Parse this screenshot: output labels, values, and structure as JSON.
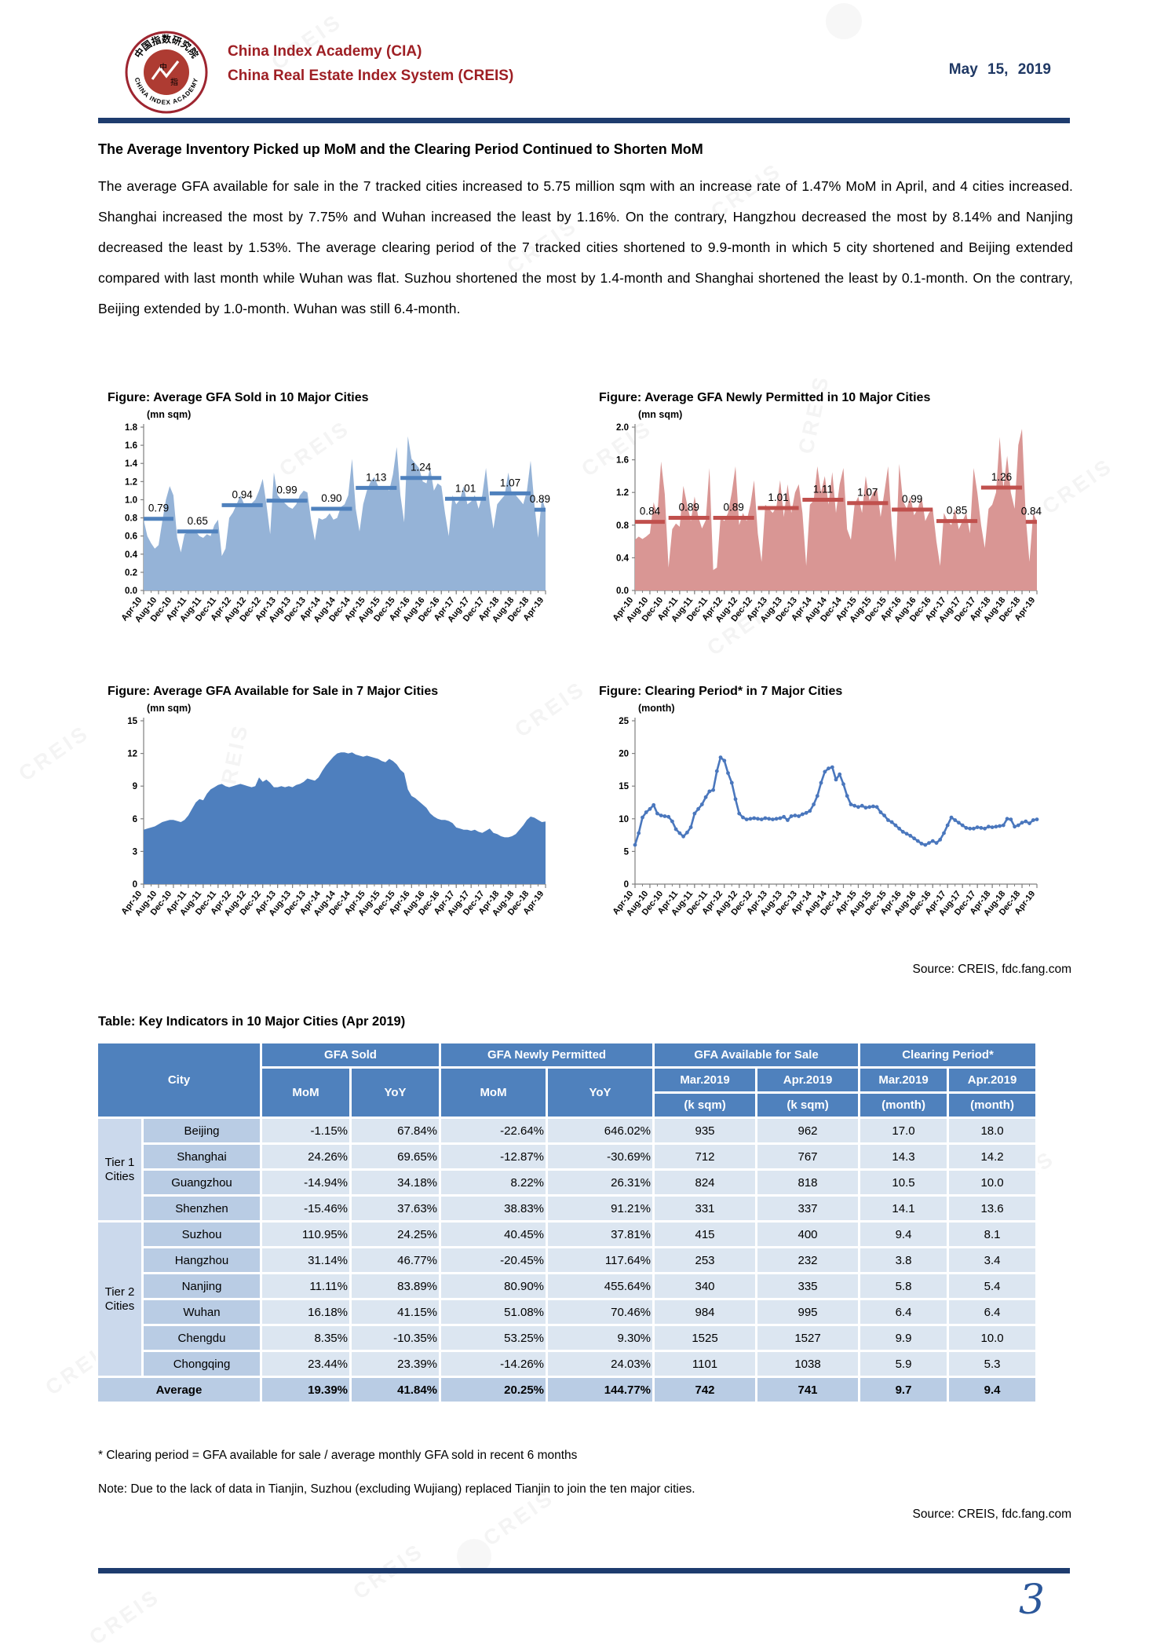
{
  "colors": {
    "brand_red": "#9E1F24",
    "navy": "#1E3C6E",
    "table_header": "#4F81BD",
    "blue_fill": "#95B3D7",
    "blue_avg": "#4F81BD",
    "red_fill": "#D99694",
    "red_avg": "#C0504D",
    "inventory_fill": "#4E7FBE",
    "line_blue": "#4A77BD"
  },
  "header": {
    "org_line1": "China Index Academy (CIA)",
    "org_line2": "China Real Estate Index System (CREIS)",
    "date": "May 15, 2019",
    "logo": {
      "ring_top": "中国指数研究院",
      "ring_bottom": "CHINA INDEX ACADEMY",
      "center_chars": "中指"
    }
  },
  "heading": "The Average Inventory Picked up MoM and the Clearing Period Continued to Shorten MoM",
  "paragraph": "The average GFA available for sale in the 7 tracked cities increased to 5.75 million sqm with an increase rate of 1.47% MoM in April, and 4 cities increased. Shanghai increased the most by 7.75% and Wuhan increased the least by 1.16%. On the contrary, Hangzhou decreased the most by 8.14% and Nanjing decreased the least by 1.53%. The average clearing period of the 7 tracked cities shortened to 9.9-month in which 5 city shortened and Beijing extended compared with last month while Wuhan was flat. Suzhou shortened the most by 1.4-month and Shanghai shortened the least by 0.1-month. On the contrary, Beijing extended by 1.0-month. Wuhan was still 6.4-month.",
  "charts_source": "Source: CREIS, fdc.fang.com",
  "watermark": "CREIS",
  "chart_data": [
    {
      "type": "area",
      "title": "Figure: Average GFA Sold in 10 Major Cities",
      "unit": "(mn sqm)",
      "ylabel": "mn sqm",
      "ymax": 1.8,
      "yticks": [
        "0.0",
        "0.2",
        "0.4",
        "0.6",
        "0.8",
        "1.0",
        "1.2",
        "1.4",
        "1.6",
        "1.8"
      ],
      "x_tick_labels": [
        "Apr-10",
        "Aug-10",
        "Dec-10",
        "Apr-11",
        "Aug-11",
        "Dec-11",
        "Apr-12",
        "Aug-12",
        "Dec-12",
        "Apr-13",
        "Aug-13",
        "Dec-13",
        "Apr-14",
        "Aug-14",
        "Dec-14",
        "Apr-15",
        "Aug-15",
        "Dec-15",
        "Apr-16",
        "Aug-16",
        "Dec-16",
        "Apr-17",
        "Aug-17",
        "Dec-17",
        "Apr-18",
        "Aug-18",
        "Dec-18",
        "Apr-19"
      ],
      "fill": "#95B3D7",
      "avg_color": "#4F81BD",
      "values": [
        0.78,
        0.6,
        0.52,
        0.46,
        0.5,
        0.76,
        1.0,
        1.15,
        1.05,
        0.58,
        0.42,
        0.62,
        0.64,
        0.66,
        0.65,
        0.6,
        0.58,
        0.62,
        0.6,
        0.72,
        0.78,
        0.38,
        0.46,
        0.8,
        0.86,
        0.95,
        1.05,
        0.95,
        0.92,
        0.96,
        1.0,
        1.1,
        1.23,
        0.95,
        0.62,
        1.3,
        1.05,
        1.0,
        0.96,
        0.92,
        0.9,
        0.95,
        1.05,
        1.1,
        1.08,
        0.78,
        0.55,
        0.8,
        0.78,
        0.8,
        0.85,
        0.78,
        0.8,
        0.92,
        0.95,
        1.05,
        1.45,
        0.9,
        0.65,
        0.95,
        1.1,
        1.2,
        1.25,
        1.15,
        1.12,
        1.15,
        1.1,
        1.28,
        1.58,
        1.05,
        0.75,
        1.7,
        1.45,
        1.4,
        1.35,
        1.2,
        1.18,
        1.35,
        1.1,
        1.18,
        1.15,
        0.85,
        0.6,
        1.05,
        0.95,
        1.0,
        1.15,
        0.95,
        0.98,
        1.05,
        0.9,
        1.05,
        1.35,
        0.95,
        0.68,
        0.95,
        1.0,
        1.05,
        1.3,
        1.05,
        1.05,
        1.0,
        0.95,
        1.1,
        1.43,
        0.95,
        0.58,
        1.02,
        0.89
      ],
      "avg_segments": [
        {
          "label": "0.79",
          "value": 0.79,
          "start": 0,
          "end": 8
        },
        {
          "label": "0.65",
          "value": 0.65,
          "start": 9,
          "end": 20
        },
        {
          "label": "0.94",
          "value": 0.94,
          "start": 21,
          "end": 32
        },
        {
          "label": "0.99",
          "value": 0.99,
          "start": 33,
          "end": 44
        },
        {
          "label": "0.90",
          "value": 0.9,
          "start": 45,
          "end": 56
        },
        {
          "label": "1.13",
          "value": 1.13,
          "start": 57,
          "end": 68
        },
        {
          "label": "1.24",
          "value": 1.24,
          "start": 69,
          "end": 80
        },
        {
          "label": "1.01",
          "value": 1.01,
          "start": 81,
          "end": 92
        },
        {
          "label": "1.07",
          "value": 1.07,
          "start": 93,
          "end": 104
        },
        {
          "label": "0.89",
          "value": 0.89,
          "start": 105,
          "end": 108
        }
      ]
    },
    {
      "type": "area",
      "title": "Figure: Average GFA Newly Permitted in 10 Major Cities",
      "unit": "(mn sqm)",
      "ylabel": "mn sqm",
      "ymax": 2.0,
      "yticks": [
        "0.0",
        "0.4",
        "0.8",
        "1.2",
        "1.6",
        "2.0"
      ],
      "x_tick_labels": [
        "Apr-10",
        "Aug-10",
        "Dec-10",
        "Apr-11",
        "Aug-11",
        "Dec-11",
        "Apr-12",
        "Aug-12",
        "Dec-12",
        "Apr-13",
        "Aug-13",
        "Dec-13",
        "Apr-14",
        "Aug-14",
        "Dec-14",
        "Apr-15",
        "Aug-15",
        "Dec-15",
        "Apr-16",
        "Aug-16",
        "Dec-16",
        "Apr-17",
        "Aug-17",
        "Dec-17",
        "Apr-18",
        "Aug-18",
        "Dec-18",
        "Apr-19"
      ],
      "fill": "#D99694",
      "avg_color": "#C0504D",
      "values": [
        0.62,
        0.66,
        0.63,
        0.66,
        0.7,
        1.08,
        0.92,
        1.58,
        1.18,
        0.28,
        0.75,
        0.82,
        0.78,
        1.28,
        1.05,
        0.85,
        1.15,
        0.9,
        0.76,
        0.86,
        1.5,
        0.25,
        0.28,
        0.9,
        0.85,
        0.95,
        1.2,
        1.52,
        0.8,
        0.95,
        0.85,
        1.05,
        1.35,
        0.7,
        0.35,
        1.05,
        1.0,
        0.95,
        1.02,
        1.35,
        0.9,
        1.3,
        0.95,
        1.2,
        1.3,
        0.95,
        0.3,
        1.05,
        1.1,
        1.52,
        1.2,
        1.4,
        1.05,
        1.45,
        0.95,
        1.3,
        1.5,
        0.75,
        0.62,
        1.05,
        1.15,
        0.95,
        1.4,
        1.1,
        1.2,
        1.25,
        0.9,
        1.2,
        1.52,
        0.8,
        0.35,
        1.55,
        1.1,
        1.0,
        1.15,
        0.92,
        1.0,
        1.15,
        0.85,
        0.95,
        1.0,
        0.6,
        0.3,
        0.95,
        0.85,
        0.8,
        1.0,
        0.75,
        0.85,
        0.95,
        0.7,
        1.5,
        1.2,
        0.8,
        0.52,
        1.0,
        1.05,
        1.2,
        1.88,
        1.25,
        1.65,
        1.2,
        1.0,
        1.78,
        1.98,
        0.9,
        0.35,
        0.95,
        0.84
      ],
      "avg_segments": [
        {
          "label": "0.84",
          "value": 0.84,
          "start": 0,
          "end": 8
        },
        {
          "label": "0.89",
          "value": 0.89,
          "start": 9,
          "end": 20
        },
        {
          "label": "0.89",
          "value": 0.89,
          "start": 21,
          "end": 32
        },
        {
          "label": "1.01",
          "value": 1.01,
          "start": 33,
          "end": 44
        },
        {
          "label": "1.11",
          "value": 1.11,
          "start": 45,
          "end": 56
        },
        {
          "label": "1.07",
          "value": 1.07,
          "start": 57,
          "end": 68
        },
        {
          "label": "0.99",
          "value": 0.99,
          "start": 69,
          "end": 80
        },
        {
          "label": "0.85",
          "value": 0.85,
          "start": 81,
          "end": 92
        },
        {
          "label": "1.26",
          "value": 1.26,
          "start": 93,
          "end": 104
        },
        {
          "label": "0.84",
          "value": 0.84,
          "start": 105,
          "end": 108
        }
      ]
    },
    {
      "type": "area",
      "title": "Figure: Average GFA Available for Sale in 7 Major Cities",
      "unit": "(mn sqm)",
      "ylabel": "mn sqm",
      "ymax": 15,
      "yticks": [
        "0",
        "3",
        "6",
        "9",
        "12",
        "15"
      ],
      "x_tick_labels": [
        "Apr-10",
        "Aug-10",
        "Dec-10",
        "Apr-11",
        "Aug-11",
        "Dec-11",
        "Apr-12",
        "Aug-12",
        "Dec-12",
        "Apr-13",
        "Aug-13",
        "Dec-13",
        "Apr-14",
        "Aug-14",
        "Dec-14",
        "Apr-15",
        "Aug-15",
        "Dec-15",
        "Apr-16",
        "Aug-16",
        "Dec-16",
        "Apr-17",
        "Aug-17",
        "Dec-17",
        "Apr-18",
        "Aug-18",
        "Dec-18",
        "Apr-19"
      ],
      "fill": "#4E7FBE",
      "avg_color": "#4E7FBE",
      "values": [
        5.0,
        5.1,
        5.2,
        5.3,
        5.5,
        5.7,
        5.8,
        5.9,
        5.9,
        5.8,
        5.7,
        5.9,
        6.3,
        6.9,
        7.5,
        7.8,
        7.7,
        8.3,
        8.7,
        8.9,
        9.1,
        9.2,
        9.0,
        8.9,
        9.0,
        9.1,
        9.2,
        9.1,
        9.0,
        8.9,
        9.0,
        9.8,
        9.4,
        9.6,
        9.3,
        8.9,
        8.9,
        9.0,
        8.9,
        9.0,
        8.9,
        9.1,
        9.2,
        9.4,
        9.7,
        9.6,
        9.5,
        9.8,
        10.4,
        10.9,
        11.3,
        11.7,
        12.0,
        12.1,
        12.1,
        12.0,
        12.1,
        11.9,
        11.8,
        11.7,
        11.8,
        11.7,
        11.6,
        11.5,
        11.3,
        11.2,
        11.5,
        11.3,
        11.0,
        10.5,
        10.2,
        8.7,
        8.1,
        7.9,
        7.6,
        7.3,
        7.0,
        6.5,
        6.2,
        6.0,
        5.9,
        5.9,
        5.8,
        5.6,
        5.2,
        5.1,
        5.0,
        5.0,
        4.9,
        5.0,
        4.8,
        4.7,
        4.9,
        5.1,
        4.7,
        4.6,
        4.4,
        4.3,
        4.3,
        4.4,
        4.6,
        5.0,
        5.4,
        5.9,
        6.2,
        6.1,
        5.9,
        5.7,
        5.75
      ],
      "avg_segments": []
    },
    {
      "type": "line",
      "title": "Figure: Clearing Period* in 7 Major Cities",
      "unit": "(month)",
      "ylabel": "month",
      "ymax": 25,
      "yticks": [
        "0",
        "5",
        "10",
        "15",
        "20",
        "25"
      ],
      "x_tick_labels": [
        "Apr-10",
        "Aug-10",
        "Dec-10",
        "Apr-11",
        "Aug-11",
        "Dec-11",
        "Apr-12",
        "Aug-12",
        "Dec-12",
        "Apr-13",
        "Aug-13",
        "Dec-13",
        "Apr-14",
        "Aug-14",
        "Dec-14",
        "Apr-15",
        "Aug-15",
        "Dec-15",
        "Apr-16",
        "Aug-16",
        "Dec-16",
        "Apr-17",
        "Aug-17",
        "Dec-17",
        "Apr-18",
        "Aug-18",
        "Dec-18",
        "Apr-19"
      ],
      "line_color": "#4A77BD",
      "values": [
        6.0,
        7.8,
        10.2,
        11.0,
        11.5,
        12.1,
        10.8,
        10.5,
        10.4,
        10.3,
        9.6,
        8.4,
        7.8,
        7.3,
        7.9,
        8.7,
        10.8,
        11.5,
        12.2,
        13.3,
        14.2,
        14.4,
        17.3,
        19.4,
        18.9,
        17.0,
        15.5,
        13.0,
        10.8,
        10.2,
        9.9,
        10.0,
        10.1,
        10.0,
        9.9,
        10.1,
        10.0,
        9.9,
        10.0,
        10.1,
        10.3,
        9.8,
        10.4,
        10.5,
        10.4,
        10.7,
        10.9,
        11.2,
        12.2,
        13.5,
        15.5,
        17.2,
        17.7,
        17.9,
        16.0,
        16.8,
        15.3,
        13.5,
        12.2,
        12.0,
        11.8,
        12.0,
        11.7,
        11.8,
        11.9,
        11.8,
        11.0,
        10.5,
        9.8,
        9.5,
        9.0,
        8.5,
        8.0,
        7.7,
        7.4,
        7.0,
        6.6,
        6.2,
        6.0,
        6.3,
        6.6,
        6.3,
        6.8,
        7.8,
        9.0,
        10.2,
        9.8,
        9.4,
        9.0,
        8.6,
        8.5,
        8.5,
        8.7,
        8.6,
        8.5,
        8.8,
        8.7,
        8.8,
        8.9,
        9.0,
        10.0,
        9.9,
        8.8,
        9.0,
        9.4,
        9.6,
        9.3,
        9.8,
        9.9
      ],
      "avg_segments": []
    }
  ],
  "table": {
    "title": "Table: Key Indicators in 10 Major Cities (Apr 2019)",
    "city_header": "City",
    "col_groups": [
      "GFA Sold",
      "GFA Newly Permitted",
      "GFA Available for Sale",
      "Clearing Period*"
    ],
    "sub_headers": [
      "MoM",
      "YoY",
      "MoM",
      "YoY",
      "Mar.2019",
      "Apr.2019",
      "Mar.2019",
      "Apr.2019"
    ],
    "unit_headers": [
      "(k sqm)",
      "(k sqm)",
      "(month)",
      "(month)"
    ],
    "tiers": [
      {
        "label": "Tier 1 Cities",
        "rows": [
          {
            "city": "Beijing",
            "values": [
              "-1.15%",
              "67.84%",
              "-22.64%",
              "646.02%",
              "935",
              "962",
              "17.0",
              "18.0"
            ]
          },
          {
            "city": "Shanghai",
            "values": [
              "24.26%",
              "69.65%",
              "-12.87%",
              "-30.69%",
              "712",
              "767",
              "14.3",
              "14.2"
            ]
          },
          {
            "city": "Guangzhou",
            "values": [
              "-14.94%",
              "34.18%",
              "8.22%",
              "26.31%",
              "824",
              "818",
              "10.5",
              "10.0"
            ]
          },
          {
            "city": "Shenzhen",
            "values": [
              "-15.46%",
              "37.63%",
              "38.83%",
              "91.21%",
              "331",
              "337",
              "14.1",
              "13.6"
            ]
          }
        ]
      },
      {
        "label": "Tier 2 Cities",
        "rows": [
          {
            "city": "Suzhou",
            "values": [
              "110.95%",
              "24.25%",
              "40.45%",
              "37.81%",
              "415",
              "400",
              "9.4",
              "8.1"
            ]
          },
          {
            "city": "Hangzhou",
            "values": [
              "31.14%",
              "46.77%",
              "-20.45%",
              "117.64%",
              "253",
              "232",
              "3.8",
              "3.4"
            ]
          },
          {
            "city": "Nanjing",
            "values": [
              "11.11%",
              "83.89%",
              "80.90%",
              "455.64%",
              "340",
              "335",
              "5.8",
              "5.4"
            ]
          },
          {
            "city": "Wuhan",
            "values": [
              "16.18%",
              "41.15%",
              "51.08%",
              "70.46%",
              "984",
              "995",
              "6.4",
              "6.4"
            ]
          },
          {
            "city": "Chengdu",
            "values": [
              "8.35%",
              "-10.35%",
              "53.25%",
              "9.30%",
              "1525",
              "1527",
              "9.9",
              "10.0"
            ]
          },
          {
            "city": "Chongqing",
            "values": [
              "23.44%",
              "23.39%",
              "-14.26%",
              "24.03%",
              "1101",
              "1038",
              "5.9",
              "5.3"
            ]
          }
        ]
      }
    ],
    "average": {
      "label": "Average",
      "values": [
        "19.39%",
        "41.84%",
        "20.25%",
        "144.77%",
        "742",
        "741",
        "9.7",
        "9.4"
      ]
    }
  },
  "footnotes": {
    "clearing": "* Clearing period = GFA available for sale / average monthly GFA sold in recent 6 months",
    "note": "Note: Due to the lack of data in Tianjin, Suzhou (excluding Wujiang) replaced Tianjin to join the ten major cities.",
    "source": "Source: CREIS, fdc.fang.com"
  },
  "page_number": "3"
}
